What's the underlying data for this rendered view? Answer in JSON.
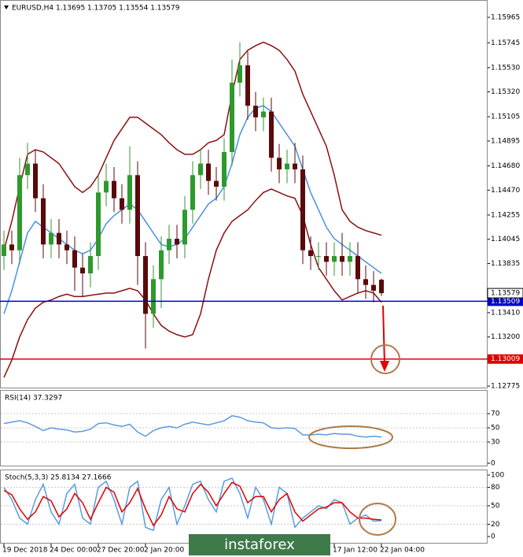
{
  "chart_data": [
    {
      "type": "candlestick",
      "title": "EURUSD,H4  1.13695 1.13705 1.13554 1.13579",
      "categories": [
        "19 Dec 2018",
        null,
        null,
        null,
        null,
        null,
        "24 Dec 00:00",
        null,
        null,
        null,
        null,
        null,
        "27 Dec 20:00",
        null,
        null,
        null,
        null,
        null,
        "2 Jan 20:00",
        null,
        null,
        null,
        null,
        null,
        null,
        null,
        null,
        null,
        null,
        null,
        null,
        null,
        null,
        null,
        null,
        null,
        null,
        null,
        null,
        null,
        null,
        null,
        "17 Jan 12:00",
        null,
        null,
        null,
        null,
        null,
        "22 Jan 04:00"
      ],
      "open": [
        1.139,
        1.14,
        1.1395,
        1.146,
        1.147,
        1.144,
        1.14,
        1.141,
        1.14,
        1.1395,
        1.138,
        1.1375,
        1.139,
        1.1445,
        1.1455,
        1.144,
        1.143,
        1.146,
        1.139,
        1.134,
        1.137,
        1.1395,
        1.1405,
        1.14,
        1.143,
        1.146,
        1.147,
        1.1455,
        1.145,
        1.148,
        1.154,
        1.1555,
        1.152,
        1.151,
        1.1515,
        1.1475,
        1.1465,
        1.147,
        1.1465,
        1.1395,
        1.139,
        1.139,
        1.1385,
        1.139,
        1.1385,
        1.139,
        1.137,
        1.1365,
        1.13695
      ],
      "high": [
        1.1412,
        1.1412,
        1.1475,
        1.1488,
        1.1482,
        1.1452,
        1.1422,
        1.1422,
        1.1412,
        1.1407,
        1.1392,
        1.1402,
        1.146,
        1.147,
        1.1467,
        1.1452,
        1.1485,
        1.1472,
        1.1402,
        1.1382,
        1.1407,
        1.1417,
        1.1417,
        1.1442,
        1.1472,
        1.1482,
        1.1482,
        1.1467,
        1.1492,
        1.156,
        1.1575,
        1.1567,
        1.1532,
        1.1527,
        1.1527,
        1.1487,
        1.1482,
        1.1488,
        1.1477,
        1.1407,
        1.1402,
        1.1402,
        1.1402,
        1.141,
        1.1402,
        1.1402,
        1.1382,
        1.1377,
        1.13705
      ],
      "low": [
        1.1378,
        1.1383,
        1.1383,
        1.1448,
        1.1428,
        1.1388,
        1.1388,
        1.1388,
        1.1383,
        1.136,
        1.1355,
        1.1363,
        1.1378,
        1.1433,
        1.1428,
        1.1418,
        1.1418,
        1.1365,
        1.131,
        1.1328,
        1.1345,
        1.1383,
        1.1388,
        1.1388,
        1.1418,
        1.1448,
        1.1443,
        1.1438,
        1.1438,
        1.1468,
        1.1528,
        1.1508,
        1.1498,
        1.1498,
        1.1463,
        1.1453,
        1.1453,
        1.1453,
        1.1383,
        1.1378,
        1.1378,
        1.1373,
        1.1373,
        1.1373,
        1.1373,
        1.1358,
        1.1353,
        1.135,
        1.13554
      ],
      "close": [
        1.14,
        1.1395,
        1.146,
        1.147,
        1.144,
        1.14,
        1.141,
        1.14,
        1.1395,
        1.138,
        1.1375,
        1.139,
        1.1445,
        1.1455,
        1.144,
        1.143,
        1.146,
        1.139,
        1.134,
        1.137,
        1.1395,
        1.1405,
        1.14,
        1.143,
        1.146,
        1.147,
        1.1455,
        1.145,
        1.148,
        1.154,
        1.1555,
        1.152,
        1.151,
        1.1515,
        1.1475,
        1.1465,
        1.147,
        1.1465,
        1.1395,
        1.139,
        1.139,
        1.1385,
        1.139,
        1.1385,
        1.139,
        1.137,
        1.1365,
        1.136,
        1.13579
      ],
      "up_color": "#2e9a2e",
      "down_color": "#5a0a0a",
      "lines": [
        {
          "color": "#8b1010",
          "values": [
            1.1395,
            1.142,
            1.145,
            1.1478,
            1.1482,
            1.148,
            1.1475,
            1.147,
            1.146,
            1.145,
            1.1445,
            1.145,
            1.146,
            1.1475,
            1.149,
            1.15,
            1.151,
            1.151,
            1.1505,
            1.15,
            1.1495,
            1.1488,
            1.1482,
            1.1478,
            1.1478,
            1.1482,
            1.1488,
            1.149,
            1.1495,
            1.153,
            1.156,
            1.1568,
            1.1572,
            1.1575,
            1.1572,
            1.1568,
            1.156,
            1.155,
            1.153,
            1.1515,
            1.15,
            1.1485,
            1.146,
            1.143,
            1.142,
            1.1415,
            1.1412,
            1.141,
            1.1408
          ]
        },
        {
          "color": "#8b1010",
          "values": [
            1.1285,
            1.13,
            1.132,
            1.1335,
            1.1345,
            1.135,
            1.1352,
            1.1355,
            1.1357,
            1.1355,
            1.1355,
            1.1356,
            1.1357,
            1.1358,
            1.1358,
            1.136,
            1.1362,
            1.136,
            1.1352,
            1.134,
            1.133,
            1.1325,
            1.1322,
            1.132,
            1.1322,
            1.134,
            1.137,
            1.1395,
            1.141,
            1.142,
            1.1425,
            1.143,
            1.1438,
            1.1445,
            1.1448,
            1.1445,
            1.1442,
            1.144,
            1.1425,
            1.14,
            1.138,
            1.137,
            1.136,
            1.1352,
            1.1355,
            1.1358,
            1.136,
            1.1358,
            1.135
          ]
        },
        {
          "color": "#4a90e2",
          "values": [
            1.134,
            1.136,
            1.1385,
            1.141,
            1.142,
            1.1415,
            1.141,
            1.1405,
            1.14,
            1.1395,
            1.1392,
            1.1395,
            1.1405,
            1.1418,
            1.1425,
            1.143,
            1.1435,
            1.143,
            1.142,
            1.141,
            1.14,
            1.1398,
            1.14,
            1.1405,
            1.1415,
            1.1425,
            1.1435,
            1.144,
            1.145,
            1.147,
            1.1495,
            1.151,
            1.1518,
            1.152,
            1.1515,
            1.1505,
            1.1495,
            1.1485,
            1.1465,
            1.1445,
            1.143,
            1.1415,
            1.1405,
            1.14,
            1.1395,
            1.139,
            1.1385,
            1.138,
            1.1375
          ]
        }
      ],
      "levels": [
        {
          "value": 1.13509,
          "color": "#0000cc"
        },
        {
          "value": 1.13009,
          "color": "#e00000"
        }
      ],
      "current": 1.13579,
      "ylim": [
        1.12755,
        1.16115
      ],
      "yticks": [
        1.15965,
        1.15745,
        {
          "value": 1.1553,
          "label": "1.15530"
        },
        {
          "value": 1.1532,
          "label": "1.15320"
        },
        1.15105,
        1.14895,
        {
          "value": 1.1468,
          "label": "1.14680"
        },
        {
          "value": 1.1447,
          "label": "1.14470"
        },
        1.14255,
        1.14045,
        1.13835,
        {
          "value": 1.1341,
          "label": "1.13410"
        },
        {
          "value": 1.132,
          "label": "1.13200"
        },
        1.12775
      ]
    },
    {
      "type": "line",
      "title": "RSI(14) 37.3297",
      "ylim": [
        0,
        100
      ],
      "yticks": [
        0,
        30,
        50,
        70
      ],
      "series": [
        {
          "color": "#5b9be0",
          "values": [
            56,
            58,
            60,
            57,
            52,
            46,
            50,
            48,
            47,
            44,
            45,
            48,
            56,
            57,
            54,
            52,
            55,
            44,
            38,
            46,
            50,
            52,
            50,
            55,
            58,
            56,
            54,
            57,
            60,
            67,
            65,
            60,
            58,
            57,
            50,
            49,
            50,
            49,
            40,
            40,
            41,
            40,
            42,
            41,
            41,
            38,
            37,
            38,
            37
          ]
        }
      ]
    },
    {
      "type": "line",
      "title": "Stoch(5,3,3) 25.8134 27.1666",
      "ylim": [
        0,
        100
      ],
      "yticks": [
        0,
        20,
        50,
        80,
        100
      ],
      "series": [
        {
          "color": "#5b9be0",
          "values": [
            80,
            60,
            30,
            20,
            60,
            85,
            40,
            20,
            70,
            85,
            30,
            20,
            80,
            90,
            60,
            20,
            80,
            90,
            15,
            10,
            60,
            80,
            20,
            50,
            85,
            90,
            60,
            40,
            90,
            95,
            70,
            30,
            80,
            60,
            20,
            80,
            70,
            15,
            30,
            40,
            50,
            45,
            60,
            55,
            20,
            30,
            35,
            25,
            26
          ]
        },
        {
          "color": "#e00000",
          "values": [
            75,
            68,
            45,
            28,
            40,
            65,
            58,
            32,
            45,
            70,
            55,
            28,
            55,
            80,
            72,
            40,
            55,
            78,
            45,
            18,
            35,
            65,
            45,
            40,
            70,
            85,
            72,
            50,
            70,
            88,
            82,
            55,
            65,
            65,
            40,
            60,
            70,
            40,
            25,
            35,
            45,
            48,
            55,
            55,
            40,
            30,
            30,
            28,
            27
          ]
        }
      ]
    }
  ],
  "watermark": "instaforex"
}
